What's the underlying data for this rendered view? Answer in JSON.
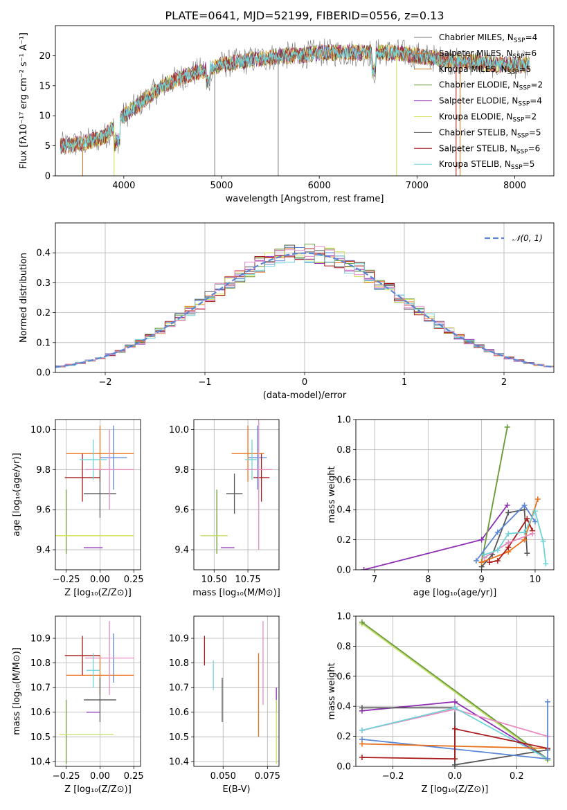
{
  "title": "PLATE=0641, MJD=52199, FIBERID=0556, z=0.13",
  "colors": {
    "chabrier_miles": "#5b86d6",
    "salpeter_miles": "#e8701a",
    "kroupa_miles": "#c9822b",
    "chabrier_elodie": "#6b9a3c",
    "salpeter_elodie": "#8e2fb4",
    "kroupa_elodie": "#d4e157",
    "chabrier_stelib": "#555555",
    "salpeter_stelib": "#aa1a1a",
    "kroupa_stelib": "#6fd3d8",
    "pink": "#e68ac0",
    "lime": "#c4e06a",
    "normal_curve": "#5b86d6"
  },
  "legend_spectrum": [
    {
      "label": "Chabrier MILES, N",
      "sub": "SSP",
      "suffix": "=4",
      "color": "#7a7a7a"
    },
    {
      "label": "Salpeter MILES, N",
      "sub": "SSP",
      "suffix": "=6",
      "color": "#e8701a"
    },
    {
      "label": "Kroupa MILES, N",
      "sub": "SSP",
      "suffix": "=5",
      "color": "#c9822b"
    },
    {
      "label": "Chabrier ELODIE, N",
      "sub": "SSP",
      "suffix": "=2",
      "color": "#6b9a3c"
    },
    {
      "label": "Salpeter ELODIE, N",
      "sub": "SSP",
      "suffix": "=4",
      "color": "#8e2fb4"
    },
    {
      "label": "Kroupa ELODIE, N",
      "sub": "SSP",
      "suffix": "=2",
      "color": "#d4e157"
    },
    {
      "label": "Chabrier STELIB, N",
      "sub": "SSP",
      "suffix": "=5",
      "color": "#555555"
    },
    {
      "label": "Salpeter STELIB, N",
      "sub": "SSP",
      "suffix": "=6",
      "color": "#aa1a1a"
    },
    {
      "label": "Kroupa STELIB, N",
      "sub": "SSP",
      "suffix": "=5",
      "color": "#6fd3d8"
    }
  ],
  "legend_hist": "𝒩(0, 1)",
  "chart_data": [
    {
      "type": "line",
      "id": "spectrum",
      "xlabel": "wavelength [Angstrom, rest frame]",
      "ylabel": "Flux [fλ10⁻¹⁷ erg cm⁻² s⁻¹ A⁻¹]",
      "xlim": [
        3300,
        8400
      ],
      "ylim": [
        0,
        25
      ],
      "xticks": [
        4000,
        5000,
        6000,
        7000,
        8000
      ],
      "yticks": [
        0,
        5,
        10,
        15,
        20
      ],
      "grid": false,
      "continuum_x": [
        3400,
        3600,
        3800,
        4000,
        4200,
        4400,
        4600,
        4800,
        5000,
        5200,
        5400,
        5600,
        5800,
        6000,
        6200,
        6400,
        6600,
        6800,
        7000,
        7200,
        7400,
        7600,
        7800,
        8000,
        8100
      ],
      "continuum_y": [
        5,
        5.5,
        6.5,
        10,
        12.5,
        15,
        16.5,
        17.5,
        18.5,
        19,
        19.5,
        20,
        20,
        20.5,
        20.5,
        20.5,
        20.5,
        20.5,
        20,
        19.5,
        19,
        19,
        18.5,
        18.5,
        18.5
      ]
    },
    {
      "type": "bar",
      "id": "residual-histogram",
      "xlabel": "(data-model)/error",
      "ylabel": "Normed distribution",
      "xlim": [
        -2.5,
        2.5
      ],
      "ylim": [
        0,
        0.5
      ],
      "xticks": [
        -2,
        -1,
        0,
        1,
        2
      ],
      "yticks": [
        0.0,
        0.1,
        0.2,
        0.3,
        0.4
      ],
      "grid": true,
      "legend": "top-right",
      "bin_width": 0.1
    },
    {
      "type": "scatter",
      "id": "age-vs-Z",
      "xlabel": "Z [log₁₀(Z/Z⊙)]",
      "ylabel": "age  [log₁₀(age/yr)]",
      "xlim": [
        -0.33,
        0.3
      ],
      "ylim": [
        9.3,
        10.05
      ],
      "xticks": [
        -0.25,
        0.0,
        0.25
      ],
      "yticks": [
        9.4,
        9.6,
        9.8,
        10.0
      ],
      "grid": true,
      "points": [
        {
          "x": 0.1,
          "y": 9.86,
          "xerr": 0.1,
          "yerr": 0.16,
          "color": "#5b86d6"
        },
        {
          "x": 0.0,
          "y": 9.88,
          "xerr": 0.25,
          "yerr": 0.14,
          "color": "#e8701a"
        },
        {
          "x": -0.25,
          "y": 9.54,
          "xerr": 0.0,
          "yerr": 0.16,
          "color": "#6b9a3c"
        },
        {
          "x": -0.05,
          "y": 9.41,
          "xerr": 0.07,
          "yerr": 0.0,
          "color": "#8e2fb4"
        },
        {
          "x": -0.05,
          "y": 9.47,
          "xerr": 0.3,
          "yerr": 0.0,
          "color": "#d4e157"
        },
        {
          "x": 0.0,
          "y": 9.68,
          "xerr": 0.12,
          "yerr": 0.12,
          "color": "#555555"
        },
        {
          "x": -0.13,
          "y": 9.76,
          "xerr": 0.13,
          "yerr": 0.12,
          "color": "#aa1a1a"
        },
        {
          "x": -0.05,
          "y": 9.85,
          "xerr": 0.1,
          "yerr": 0.1,
          "color": "#6fd3d8"
        },
        {
          "x": 0.07,
          "y": 9.8,
          "xerr": 0.18,
          "yerr": 0.2,
          "color": "#e68ac0"
        }
      ]
    },
    {
      "type": "scatter",
      "id": "age-vs-mass",
      "xlabel": "mass [log₁₀(M/M⊙)]",
      "ylabel": "",
      "xlim": [
        10.35,
        10.98
      ],
      "ylim": [
        9.3,
        10.05
      ],
      "xticks": [
        10.5,
        10.75
      ],
      "yticks": [
        9.4,
        9.6,
        9.8,
        10.0
      ],
      "grid": true,
      "points": [
        {
          "x": 10.82,
          "y": 9.86,
          "xerr": 0.07,
          "yerr": 0.16,
          "color": "#5b86d6"
        },
        {
          "x": 10.75,
          "y": 9.88,
          "xerr": 0.12,
          "yerr": 0.14,
          "color": "#e8701a"
        },
        {
          "x": 10.52,
          "y": 9.54,
          "xerr": 0.0,
          "yerr": 0.16,
          "color": "#6b9a3c"
        },
        {
          "x": 10.6,
          "y": 9.41,
          "xerr": 0.05,
          "yerr": 0.0,
          "color": "#8e2fb4"
        },
        {
          "x": 10.5,
          "y": 9.47,
          "xerr": 0.1,
          "yerr": 0.0,
          "color": "#c4e06a"
        },
        {
          "x": 10.65,
          "y": 9.68,
          "xerr": 0.06,
          "yerr": 0.1,
          "color": "#555555"
        },
        {
          "x": 10.85,
          "y": 9.76,
          "xerr": 0.06,
          "yerr": 0.12,
          "color": "#aa1a1a"
        },
        {
          "x": 10.78,
          "y": 9.85,
          "xerr": 0.05,
          "yerr": 0.1,
          "color": "#6fd3d8"
        },
        {
          "x": 10.83,
          "y": 9.8,
          "xerr": 0.1,
          "yerr": 0.4,
          "color": "#e68ac0"
        }
      ]
    },
    {
      "type": "line",
      "id": "mass-weight-vs-age",
      "xlabel": "age  [log₁₀(age/yr)]",
      "ylabel": "mass weight",
      "xlim": [
        6.65,
        10.35
      ],
      "ylim": [
        0,
        1.0
      ],
      "xticks": [
        7,
        8,
        9,
        10
      ],
      "yticks": [
        0.0,
        0.2,
        0.4,
        0.6,
        0.8,
        1.0
      ],
      "grid": true,
      "series": [
        {
          "color": "#8e2fb4",
          "x": [
            6.8,
            9.0,
            9.48
          ],
          "y": [
            0.0,
            0.2,
            0.43
          ]
        },
        {
          "color": "#c4e06a",
          "x": [
            9.0,
            9.48
          ],
          "y": [
            0.05,
            0.95
          ]
        },
        {
          "color": "#6b9a3c",
          "x": [
            9.0,
            9.48
          ],
          "y": [
            0.05,
            0.95
          ]
        },
        {
          "color": "#555555",
          "x": [
            9.0,
            9.2,
            9.5,
            9.8,
            9.85
          ],
          "y": [
            0.02,
            0.1,
            0.38,
            0.4,
            0.11
          ]
        },
        {
          "color": "#5b86d6",
          "x": [
            8.9,
            9.3,
            9.8,
            10.0
          ],
          "y": [
            0.06,
            0.25,
            0.43,
            0.32
          ]
        },
        {
          "color": "#e8701a",
          "x": [
            9.0,
            9.5,
            9.8,
            10.05
          ],
          "y": [
            0.05,
            0.12,
            0.2,
            0.47
          ]
        },
        {
          "color": "#aa1a1a",
          "x": [
            9.15,
            9.3,
            9.5,
            9.85,
            9.95
          ],
          "y": [
            0.05,
            0.06,
            0.15,
            0.34,
            0.26
          ]
        },
        {
          "color": "#e68ac0",
          "x": [
            9.05,
            9.5,
            9.95
          ],
          "y": [
            0.08,
            0.18,
            0.24
          ]
        },
        {
          "color": "#6fd3d8",
          "x": [
            9.05,
            9.3,
            9.5,
            9.8,
            10.0,
            10.15,
            10.2
          ],
          "y": [
            0.1,
            0.13,
            0.24,
            0.25,
            0.39,
            0.19,
            0.04
          ]
        }
      ]
    },
    {
      "type": "scatter",
      "id": "mass-vs-Z",
      "xlabel": "Z [log₁₀(Z/Z⊙)]",
      "ylabel": "mass [log₁₀(M/M⊙)]",
      "xlim": [
        -0.33,
        0.3
      ],
      "ylim": [
        10.38,
        10.99
      ],
      "xticks": [
        -0.25,
        0.0,
        0.25
      ],
      "yticks": [
        10.4,
        10.5,
        10.6,
        10.7,
        10.8,
        10.9
      ],
      "grid": true,
      "points": [
        {
          "x": 0.1,
          "y": 10.82,
          "xerr": 0.0,
          "yerr": 0.1,
          "color": "#5b86d6"
        },
        {
          "x": 0.0,
          "y": 10.75,
          "xerr": 0.25,
          "yerr": 0.08,
          "color": "#e8701a"
        },
        {
          "x": -0.25,
          "y": 10.52,
          "xerr": 0.0,
          "yerr": 0.13,
          "color": "#6b9a3c"
        },
        {
          "x": -0.05,
          "y": 10.6,
          "xerr": 0.05,
          "yerr": 0.0,
          "color": "#8e2fb4"
        },
        {
          "x": -0.1,
          "y": 10.51,
          "xerr": 0.2,
          "yerr": 0.0,
          "color": "#c4e06a"
        },
        {
          "x": 0.0,
          "y": 10.65,
          "xerr": 0.12,
          "yerr": 0.09,
          "color": "#555555"
        },
        {
          "x": -0.13,
          "y": 10.83,
          "xerr": 0.13,
          "yerr": 0.08,
          "color": "#aa1a1a"
        },
        {
          "x": -0.05,
          "y": 10.77,
          "xerr": 0.05,
          "yerr": 0.07,
          "color": "#6fd3d8"
        },
        {
          "x": 0.07,
          "y": 10.82,
          "xerr": 0.18,
          "yerr": 0.15,
          "color": "#e68ac0"
        }
      ]
    },
    {
      "type": "scatter",
      "id": "mass-vs-ebv",
      "xlabel": "E(B-V)",
      "ylabel": "",
      "xlim": [
        0.0335,
        0.0815
      ],
      "ylim": [
        10.38,
        10.99
      ],
      "xticks": [
        0.05,
        0.075
      ],
      "yticks": [
        10.4,
        10.5,
        10.6,
        10.7,
        10.8,
        10.9
      ],
      "grid": true,
      "points": [
        {
          "x": 0.0395,
          "y": 10.85,
          "xerr": 0,
          "yerr": 0.06,
          "color": "#aa1a1a"
        },
        {
          "x": 0.0445,
          "y": 10.75,
          "xerr": 0,
          "yerr": 0.06,
          "color": "#6fd3d8"
        },
        {
          "x": 0.0495,
          "y": 10.65,
          "xerr": 0,
          "yerr": 0.09,
          "color": "#555555"
        },
        {
          "x": 0.07,
          "y": 10.67,
          "xerr": 0,
          "yerr": 0.17,
          "color": "#e8701a"
        },
        {
          "x": 0.0725,
          "y": 10.8,
          "xerr": 0,
          "yerr": 0.17,
          "color": "#e68ac0"
        },
        {
          "x": 0.08,
          "y": 10.65,
          "xerr": 0,
          "yerr": 0.05,
          "color": "#8e2fb4"
        },
        {
          "x": 0.08,
          "y": 10.52,
          "xerr": 0,
          "yerr": 0.13,
          "color": "#c4e06a"
        }
      ]
    },
    {
      "type": "line",
      "id": "mass-weight-vs-Z",
      "xlabel": "Z [log₁₀(Z/Z⊙)]",
      "ylabel": "mass weight",
      "xlim": [
        -0.32,
        0.32
      ],
      "ylim": [
        0,
        1.0
      ],
      "xticks": [
        -0.2,
        0.0,
        0.2
      ],
      "yticks": [
        0.0,
        0.2,
        0.4,
        0.6,
        0.8,
        1.0
      ],
      "grid": true,
      "series": [
        {
          "color": "#c4e06a",
          "x": [
            -0.3,
            0.3
          ],
          "y": [
            0.95,
            0.04
          ]
        },
        {
          "color": "#6b9a3c",
          "x": [
            -0.3,
            0.3
          ],
          "y": [
            0.96,
            0.05
          ]
        },
        {
          "color": "#8e2fb4",
          "x": [
            -0.3,
            0.0,
            0.3
          ],
          "y": [
            0.37,
            0.43,
            0.05
          ]
        },
        {
          "color": "#555555",
          "x": [
            -0.3,
            0.0,
            0.0,
            0.3
          ],
          "y": [
            0.39,
            0.39,
            0.01,
            0.11
          ]
        },
        {
          "color": "#e68ac0",
          "x": [
            -0.3,
            0.0,
            0.3
          ],
          "y": [
            0.24,
            0.38,
            0.2
          ]
        },
        {
          "color": "#6fd3d8",
          "x": [
            -0.3,
            0.0,
            0.3
          ],
          "y": [
            0.24,
            0.39,
            0.05
          ]
        },
        {
          "color": "#5b86d6",
          "x": [
            -0.3,
            0.3
          ],
          "y": [
            0.18,
            0.05
          ]
        },
        {
          "color": "#e8701a",
          "x": [
            -0.3,
            0.3
          ],
          "y": [
            0.15,
            0.12
          ]
        },
        {
          "color": "#aa1a1a",
          "x": [
            -0.3,
            0.0,
            0.0,
            0.3
          ],
          "y": [
            0.06,
            0.05,
            0.25,
            0.12
          ]
        },
        {
          "color": "#5b86d6",
          "x": [
            0.3,
            0.3
          ],
          "y": [
            0.05,
            0.43
          ]
        }
      ]
    }
  ]
}
